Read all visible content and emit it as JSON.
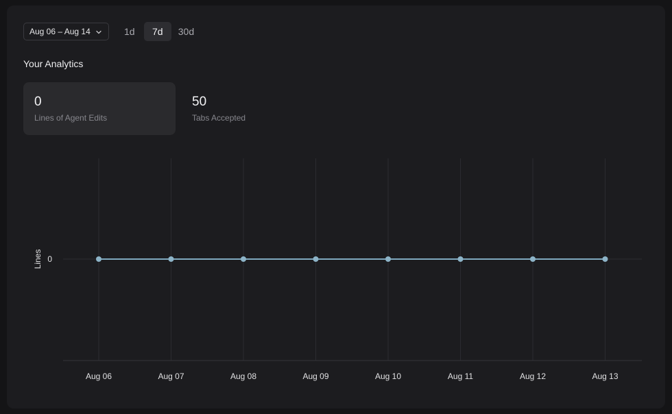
{
  "toolbar": {
    "date_range": "Aug 06 – Aug 14",
    "ranges": [
      "1d",
      "7d",
      "30d"
    ],
    "active_range": "7d"
  },
  "section_title": "Your Analytics",
  "stats": [
    {
      "value": "0",
      "label": "Lines of Agent Edits",
      "selected": true
    },
    {
      "value": "50",
      "label": "Tabs Accepted",
      "selected": false
    }
  ],
  "colors": {
    "line": "#7fa9bf",
    "point": "#8db4c8"
  },
  "chart_data": {
    "type": "line",
    "categories": [
      "Aug 06",
      "Aug 07",
      "Aug 08",
      "Aug 09",
      "Aug 10",
      "Aug 11",
      "Aug 12",
      "Aug 13"
    ],
    "series": [
      {
        "values": [
          0,
          0,
          0,
          0,
          0,
          0,
          0,
          0
        ]
      }
    ],
    "ylabel": "Lines",
    "yticks": [
      "0"
    ],
    "grid": "vertical"
  }
}
